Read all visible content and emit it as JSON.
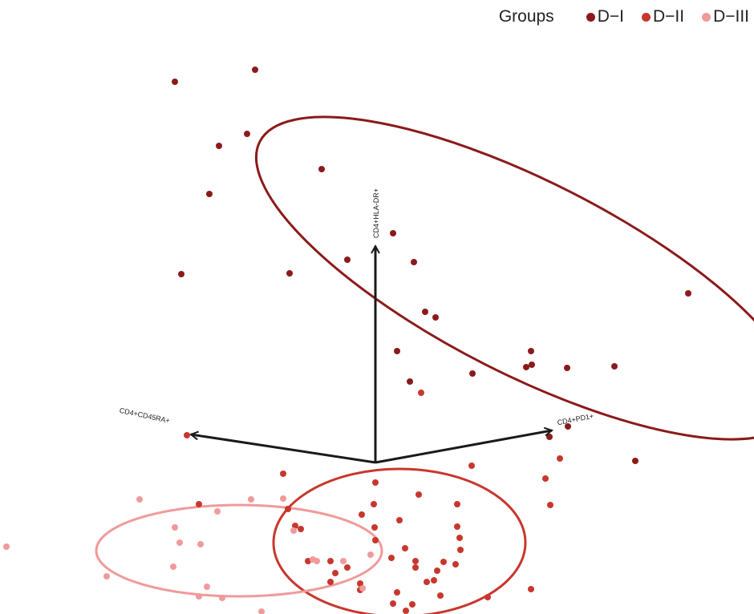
{
  "chart_data": {
    "type": "scatter",
    "legend": {
      "title": "Groups",
      "placement": "top-right"
    },
    "groups": [
      {
        "name": "D−I",
        "color": "#8b1a1a"
      },
      {
        "name": "D−II",
        "color": "#c8372d"
      },
      {
        "name": "D−III",
        "color": "#f09a9a"
      }
    ],
    "loadings": [
      {
        "label": "CD4+HLA-DR+",
        "x": 0.0,
        "y": 2.7
      },
      {
        "label": "CD4+CD45RA+",
        "x": -2.3,
        "y": 0.35
      },
      {
        "label": "CD4+PD1+",
        "x": 2.2,
        "y": 0.4
      }
    ],
    "ellipses": [
      {
        "group": "D−I",
        "cx": 1.9,
        "cy": 2.3,
        "rx": 3.75,
        "ry": 1.2,
        "angle_deg": 27
      },
      {
        "group": "D−II",
        "cx": 0.3,
        "cy": -1.0,
        "rx": 1.57,
        "ry": 0.92,
        "angle_deg": 0
      },
      {
        "group": "D−III",
        "cx": -1.7,
        "cy": -1.1,
        "rx": 1.78,
        "ry": 0.57,
        "angle_deg": 0
      }
    ],
    "series": [
      {
        "name": "D−I",
        "points": [
          [
            -2.5,
            4.75
          ],
          [
            -1.5,
            4.9
          ],
          [
            -1.95,
            3.95
          ],
          [
            -1.6,
            4.1
          ],
          [
            -0.67,
            3.66
          ],
          [
            -2.07,
            3.35
          ],
          [
            -1.07,
            2.36
          ],
          [
            -2.42,
            2.35
          ],
          [
            -0.35,
            2.53
          ],
          [
            0.22,
            2.86
          ],
          [
            0.48,
            2.5
          ],
          [
            0.62,
            1.88
          ],
          [
            0.75,
            1.81
          ],
          [
            0.27,
            1.39
          ],
          [
            0.43,
            1.01
          ],
          [
            1.21,
            1.11
          ],
          [
            1.94,
            1.39
          ],
          [
            1.95,
            1.22
          ],
          [
            1.88,
            1.19
          ],
          [
            2.39,
            1.18
          ],
          [
            2.98,
            1.2
          ],
          [
            3.9,
            2.11
          ],
          [
            2.4,
            0.45
          ],
          [
            2.17,
            0.32
          ],
          [
            3.24,
            0.02
          ]
        ]
      },
      {
        "name": "D−II",
        "points": [
          [
            -2.35,
            0.34
          ],
          [
            0.57,
            0.87
          ],
          [
            1.2,
            -0.04
          ],
          [
            2.3,
            0.05
          ],
          [
            -1.15,
            -0.14
          ],
          [
            0.0,
            -0.25
          ],
          [
            0.54,
            -0.4
          ],
          [
            -2.2,
            -0.52
          ],
          [
            -1.09,
            -0.58
          ],
          [
            -0.02,
            -0.52
          ],
          [
            -0.17,
            -0.65
          ],
          [
            0.3,
            -0.72
          ],
          [
            1.02,
            -0.52
          ],
          [
            2.12,
            -0.2
          ],
          [
            2.18,
            -0.53
          ],
          [
            -0.01,
            -0.81
          ],
          [
            1.02,
            -0.8
          ],
          [
            1.05,
            -0.94
          ],
          [
            -1.0,
            -0.79
          ],
          [
            -0.93,
            -0.83
          ],
          [
            0.0,
            -0.97
          ],
          [
            0.37,
            -1.07
          ],
          [
            1.06,
            -1.09
          ],
          [
            0.2,
            -1.19
          ],
          [
            -0.84,
            -1.23
          ],
          [
            -0.56,
            -1.23
          ],
          [
            0.5,
            -1.23
          ],
          [
            0.85,
            -1.24
          ],
          [
            1.0,
            -1.27
          ],
          [
            -0.35,
            -1.31
          ],
          [
            0.5,
            -1.31
          ],
          [
            0.77,
            -1.35
          ],
          [
            -0.5,
            -1.38
          ],
          [
            0.73,
            -1.47
          ],
          [
            -0.56,
            -1.49
          ],
          [
            -0.19,
            -1.51
          ],
          [
            0.64,
            -1.49
          ],
          [
            -0.19,
            -1.59
          ],
          [
            0.27,
            -1.62
          ],
          [
            0.81,
            -1.66
          ],
          [
            1.4,
            -1.68
          ],
          [
            0.22,
            -1.76
          ],
          [
            0.46,
            -1.77
          ],
          [
            0.38,
            -1.85
          ],
          [
            1.94,
            -1.58
          ]
        ]
      },
      {
        "name": "D−III",
        "points": [
          [
            -2.94,
            -0.46
          ],
          [
            -1.97,
            -0.61
          ],
          [
            -1.55,
            -0.46
          ],
          [
            -1.15,
            -0.45
          ],
          [
            -1.02,
            -0.85
          ],
          [
            -2.5,
            -0.81
          ],
          [
            -2.44,
            -1.0
          ],
          [
            -2.18,
            -1.02
          ],
          [
            -0.78,
            -1.21
          ],
          [
            -0.73,
            -1.23
          ],
          [
            -0.4,
            -1.23
          ],
          [
            -0.06,
            -1.15
          ],
          [
            -2.52,
            -1.3
          ],
          [
            -3.35,
            -1.42
          ],
          [
            -2.1,
            -1.55
          ],
          [
            -2.2,
            -1.67
          ],
          [
            -1.91,
            -1.69
          ],
          [
            -0.16,
            -1.57
          ],
          [
            -1.42,
            -1.86
          ],
          [
            -4.6,
            -1.05
          ]
        ]
      }
    ]
  }
}
